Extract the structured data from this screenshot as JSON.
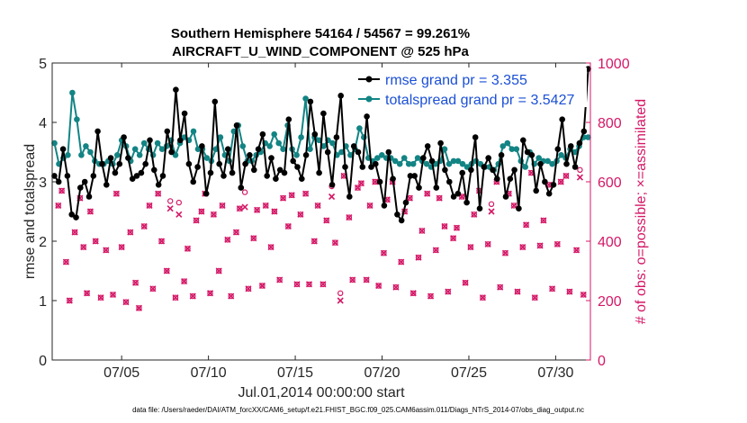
{
  "chart_data": {
    "type": "line",
    "title_line1": "Southern Hemisphere 54164 / 54567 = 99.261%",
    "title_line2": "AIRCRAFT_U_WIND_COMPONENT @ 525 hPa",
    "xlabel": "Jul.01,2014 00:00:00 start",
    "ylabel_left": "rmse and totalspread",
    "ylabel_right": "# of obs: o=possible; ×=assimilated",
    "footnote": "data file: /Users/raeder/DAI/ATM_forcXX/CAM6_setup/f.e21.FHIST_BGC.f09_025.CAM6assim.011/Diags_NTrS_2014-07/obs_diag_output.nc",
    "xlim": [
      1,
      32
    ],
    "ylim_left": [
      0,
      5
    ],
    "ylim_right": [
      0,
      1000
    ],
    "x_ticks": [
      {
        "x": 5,
        "label": "07/05"
      },
      {
        "x": 10,
        "label": "07/10"
      },
      {
        "x": 15,
        "label": "07/15"
      },
      {
        "x": 20,
        "label": "07/20"
      },
      {
        "x": 25,
        "label": "07/25"
      },
      {
        "x": 30,
        "label": "07/30"
      }
    ],
    "y_ticks_left": [
      "0",
      "1",
      "2",
      "3",
      "4",
      "5"
    ],
    "y_ticks_right": [
      "0",
      "200",
      "400",
      "600",
      "800",
      "1000"
    ],
    "colors": {
      "rmse": "#000000",
      "spread": "#138484",
      "obs": "#d41867",
      "legend_text": "#1a4fd6"
    },
    "series": [
      {
        "name": "rmse grand pr = 3.355",
        "values": [
          3.1,
          3.0,
          3.55,
          3.1,
          2.45,
          2.4,
          2.9,
          3.0,
          2.75,
          3.1,
          3.85,
          3.3,
          2.95,
          3.4,
          3.15,
          3.3,
          3.75,
          3.4,
          3.05,
          3.1,
          3.15,
          3.3,
          3.7,
          3.2,
          2.95,
          3.1,
          3.85,
          3.5,
          4.55,
          3.7,
          4.15,
          3.3,
          3.0,
          3.25,
          3.6,
          2.8,
          3.15,
          4.35,
          3.3,
          3.1,
          3.55,
          3.15,
          3.95,
          2.9,
          3.3,
          3.45,
          3.2,
          3.55,
          3.8,
          3.1,
          3.4,
          3.05,
          3.2,
          3.15,
          4.05,
          3.35,
          3.25,
          3.05,
          3.45,
          4.35,
          3.8,
          3.15,
          4.15,
          3.5,
          2.95,
          3.75,
          4.45,
          3.25,
          2.75,
          3.6,
          3.5,
          3.25,
          4.1,
          3.25,
          3.3,
          3.0,
          2.6,
          3.5,
          3.05,
          2.45,
          2.35,
          2.65,
          3.1,
          3.1,
          2.9,
          3.4,
          3.6,
          3.35,
          2.9,
          3.65,
          3.2,
          3.0,
          2.75,
          2.8,
          3.15,
          2.65,
          3.2,
          3.75,
          2.55,
          3.25,
          3.4,
          3.2,
          3.05,
          3.45,
          2.75,
          3.05,
          3.2,
          2.55,
          3.7,
          3.5,
          3.45,
          2.85,
          3.3,
          3.0,
          2.8,
          2.95,
          3.55,
          4.05,
          3.3,
          3.6,
          3.25,
          3.65,
          3.85,
          4.9
        ]
      },
      {
        "name": "totalspread grand pr = 3.5427",
        "values": [
          3.65,
          3.3,
          3.4,
          3.45,
          4.5,
          4.05,
          3.45,
          3.6,
          3.5,
          3.35,
          3.3,
          3.3,
          3.35,
          3.3,
          3.45,
          3.7,
          3.6,
          3.35,
          3.55,
          3.45,
          3.65,
          3.55,
          3.45,
          3.65,
          3.55,
          3.6,
          3.7,
          3.45,
          3.65,
          3.75,
          3.7,
          3.85,
          3.55,
          3.55,
          3.4,
          3.35,
          3.55,
          3.75,
          3.45,
          3.35,
          3.85,
          3.95,
          3.6,
          3.35,
          3.35,
          3.45,
          3.5,
          3.65,
          3.6,
          3.8,
          3.65,
          3.55,
          3.95,
          3.55,
          3.45,
          3.75,
          4.4,
          3.55,
          3.75,
          3.7,
          3.6,
          3.7,
          3.65,
          3.45,
          3.5,
          3.6,
          3.45,
          3.55,
          3.9,
          3.75,
          3.4,
          3.35,
          3.4,
          3.45,
          3.4,
          3.4,
          3.35,
          3.3,
          3.4,
          3.3,
          3.3,
          3.4,
          3.35,
          3.3,
          3.25,
          3.3,
          3.35,
          3.55,
          3.3,
          3.35,
          3.35,
          3.3,
          3.25,
          3.3,
          3.35,
          3.3,
          3.25,
          3.25,
          3.2,
          3.3,
          3.6,
          3.65,
          3.55,
          3.55,
          3.35,
          3.25,
          3.5,
          3.3,
          3.4,
          3.35,
          3.35,
          3.3,
          3.35,
          3.45,
          3.4,
          3.55,
          3.5,
          3.6,
          3.75,
          3.75
        ]
      }
    ],
    "obs_possible_points": [
      [
        1.35,
        520
      ],
      [
        1.55,
        570
      ],
      [
        1.8,
        330
      ],
      [
        2.0,
        200
      ],
      [
        2.3,
        430
      ],
      [
        2.6,
        545
      ],
      [
        2.8,
        380
      ],
      [
        3.0,
        225
      ],
      [
        3.2,
        500
      ],
      [
        3.5,
        400
      ],
      [
        3.8,
        210
      ],
      [
        4.1,
        370
      ],
      [
        4.5,
        220
      ],
      [
        4.7,
        560
      ],
      [
        5.0,
        380
      ],
      [
        5.25,
        195
      ],
      [
        5.5,
        430
      ],
      [
        5.8,
        260
      ],
      [
        6.0,
        175
      ],
      [
        6.3,
        450
      ],
      [
        6.6,
        520
      ],
      [
        6.8,
        240
      ],
      [
        7.1,
        560
      ],
      [
        7.3,
        400
      ],
      [
        7.6,
        300
      ],
      [
        7.8,
        535
      ],
      [
        8.1,
        210
      ],
      [
        8.3,
        530
      ],
      [
        8.6,
        265
      ],
      [
        8.8,
        375
      ],
      [
        9.1,
        215
      ],
      [
        9.3,
        470
      ],
      [
        9.6,
        500
      ],
      [
        9.8,
        560
      ],
      [
        10.1,
        225
      ],
      [
        10.3,
        490
      ],
      [
        10.6,
        300
      ],
      [
        10.8,
        520
      ],
      [
        11.1,
        405
      ],
      [
        11.3,
        215
      ],
      [
        11.6,
        430
      ],
      [
        11.8,
        510
      ],
      [
        12.1,
        565
      ],
      [
        12.3,
        240
      ],
      [
        12.6,
        410
      ],
      [
        12.8,
        505
      ],
      [
        13.1,
        250
      ],
      [
        13.3,
        520
      ],
      [
        13.6,
        380
      ],
      [
        13.8,
        500
      ],
      [
        14.1,
        270
      ],
      [
        14.3,
        545
      ],
      [
        14.6,
        450
      ],
      [
        14.8,
        555
      ],
      [
        15.1,
        255
      ],
      [
        15.3,
        490
      ],
      [
        15.6,
        560
      ],
      [
        15.8,
        255
      ],
      [
        16.1,
        400
      ],
      [
        16.3,
        520
      ],
      [
        16.6,
        255
      ],
      [
        16.8,
        470
      ],
      [
        17.1,
        585
      ],
      [
        17.3,
        395
      ],
      [
        17.6,
        225
      ],
      [
        17.8,
        620
      ],
      [
        18.1,
        480
      ],
      [
        18.3,
        270
      ],
      [
        18.6,
        580
      ],
      [
        18.8,
        595
      ],
      [
        19.1,
        270
      ],
      [
        19.3,
        520
      ],
      [
        19.6,
        600
      ],
      [
        19.8,
        250
      ],
      [
        20.1,
        360
      ],
      [
        20.3,
        540
      ],
      [
        20.6,
        600
      ],
      [
        20.8,
        245
      ],
      [
        21.1,
        330
      ],
      [
        21.3,
        500
      ],
      [
        21.6,
        545
      ],
      [
        21.8,
        225
      ],
      [
        22.1,
        345
      ],
      [
        22.3,
        435
      ],
      [
        22.6,
        560
      ],
      [
        22.8,
        215
      ],
      [
        23.1,
        370
      ],
      [
        23.3,
        545
      ],
      [
        23.6,
        450
      ],
      [
        23.8,
        230
      ],
      [
        24.1,
        410
      ],
      [
        24.3,
        445
      ],
      [
        24.6,
        550
      ],
      [
        24.8,
        260
      ],
      [
        25.1,
        380
      ],
      [
        25.3,
        490
      ],
      [
        25.6,
        570
      ],
      [
        25.8,
        210
      ],
      [
        26.1,
        390
      ],
      [
        26.3,
        525
      ],
      [
        26.6,
        600
      ],
      [
        26.8,
        245
      ],
      [
        27.1,
        360
      ],
      [
        27.3,
        560
      ],
      [
        27.6,
        520
      ],
      [
        27.8,
        230
      ],
      [
        28.1,
        380
      ],
      [
        28.3,
        455
      ],
      [
        28.6,
        630
      ],
      [
        28.8,
        210
      ],
      [
        29.1,
        385
      ],
      [
        29.3,
        470
      ],
      [
        29.6,
        590
      ],
      [
        29.8,
        240
      ],
      [
        30.1,
        390
      ],
      [
        30.3,
        600
      ],
      [
        30.6,
        620
      ],
      [
        30.8,
        230
      ],
      [
        31.2,
        370
      ],
      [
        31.4,
        640
      ],
      [
        31.6,
        220
      ]
    ],
    "obs_assimilated_points": [
      [
        1.35,
        520
      ],
      [
        1.55,
        570
      ],
      [
        1.8,
        330
      ],
      [
        2.0,
        200
      ],
      [
        2.3,
        430
      ],
      [
        2.6,
        545
      ],
      [
        2.8,
        380
      ],
      [
        3.0,
        225
      ],
      [
        3.2,
        500
      ],
      [
        3.5,
        400
      ],
      [
        3.8,
        210
      ],
      [
        4.1,
        370
      ],
      [
        4.5,
        220
      ],
      [
        4.7,
        560
      ],
      [
        5.0,
        380
      ],
      [
        5.25,
        195
      ],
      [
        5.5,
        430
      ],
      [
        5.8,
        260
      ],
      [
        6.0,
        175
      ],
      [
        6.3,
        450
      ],
      [
        6.6,
        520
      ],
      [
        6.8,
        240
      ],
      [
        7.1,
        560
      ],
      [
        7.3,
        400
      ],
      [
        7.6,
        300
      ],
      [
        7.8,
        510
      ],
      [
        8.1,
        210
      ],
      [
        8.3,
        490
      ],
      [
        8.6,
        265
      ],
      [
        8.8,
        375
      ],
      [
        9.1,
        215
      ],
      [
        9.3,
        470
      ],
      [
        9.6,
        500
      ],
      [
        9.8,
        560
      ],
      [
        10.1,
        225
      ],
      [
        10.3,
        490
      ],
      [
        10.6,
        300
      ],
      [
        10.8,
        520
      ],
      [
        11.1,
        405
      ],
      [
        11.3,
        215
      ],
      [
        11.6,
        430
      ],
      [
        11.8,
        510
      ],
      [
        12.1,
        515
      ],
      [
        12.3,
        240
      ],
      [
        12.6,
        410
      ],
      [
        12.8,
        505
      ],
      [
        13.1,
        250
      ],
      [
        13.3,
        520
      ],
      [
        13.6,
        380
      ],
      [
        13.8,
        500
      ],
      [
        14.1,
        270
      ],
      [
        14.3,
        545
      ],
      [
        14.6,
        450
      ],
      [
        14.8,
        555
      ],
      [
        15.1,
        255
      ],
      [
        15.3,
        490
      ],
      [
        15.6,
        560
      ],
      [
        15.8,
        255
      ],
      [
        16.1,
        400
      ],
      [
        16.3,
        520
      ],
      [
        16.6,
        255
      ],
      [
        16.8,
        470
      ],
      [
        17.1,
        550
      ],
      [
        17.3,
        395
      ],
      [
        17.6,
        200
      ],
      [
        17.8,
        620
      ],
      [
        18.1,
        480
      ],
      [
        18.3,
        270
      ],
      [
        18.6,
        580
      ],
      [
        18.8,
        595
      ],
      [
        19.1,
        270
      ],
      [
        19.3,
        520
      ],
      [
        19.6,
        600
      ],
      [
        19.8,
        250
      ],
      [
        20.1,
        360
      ],
      [
        20.3,
        540
      ],
      [
        20.6,
        600
      ],
      [
        20.8,
        245
      ],
      [
        21.1,
        330
      ],
      [
        21.3,
        500
      ],
      [
        21.6,
        545
      ],
      [
        21.8,
        225
      ],
      [
        22.1,
        345
      ],
      [
        22.3,
        435
      ],
      [
        22.6,
        560
      ],
      [
        22.8,
        215
      ],
      [
        23.1,
        370
      ],
      [
        23.3,
        545
      ],
      [
        23.6,
        450
      ],
      [
        23.8,
        230
      ],
      [
        24.1,
        410
      ],
      [
        24.3,
        445
      ],
      [
        24.6,
        550
      ],
      [
        24.8,
        260
      ],
      [
        25.1,
        380
      ],
      [
        25.3,
        490
      ],
      [
        25.6,
        570
      ],
      [
        25.8,
        210
      ],
      [
        26.1,
        390
      ],
      [
        26.3,
        500
      ],
      [
        26.6,
        600
      ],
      [
        26.8,
        245
      ],
      [
        27.1,
        360
      ],
      [
        27.3,
        560
      ],
      [
        27.6,
        520
      ],
      [
        27.8,
        230
      ],
      [
        28.1,
        380
      ],
      [
        28.3,
        455
      ],
      [
        28.6,
        630
      ],
      [
        28.8,
        210
      ],
      [
        29.1,
        385
      ],
      [
        29.3,
        470
      ],
      [
        29.6,
        590
      ],
      [
        29.8,
        240
      ],
      [
        30.1,
        390
      ],
      [
        30.3,
        600
      ],
      [
        30.6,
        620
      ],
      [
        30.8,
        230
      ],
      [
        31.2,
        370
      ],
      [
        31.4,
        615
      ],
      [
        31.6,
        220
      ]
    ]
  }
}
